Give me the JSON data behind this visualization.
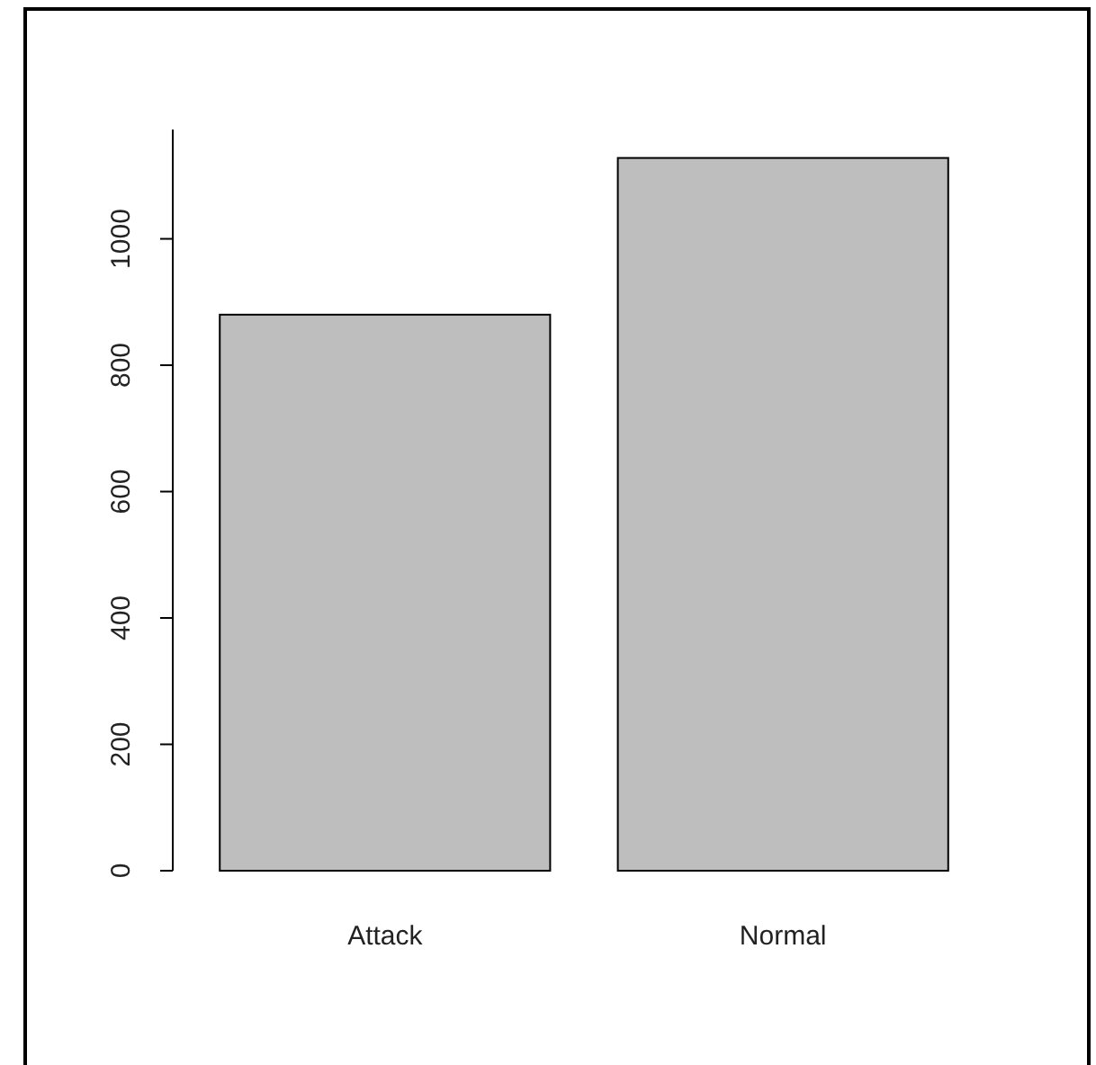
{
  "chart_data": {
    "type": "bar",
    "categories": [
      "Attack",
      "Normal"
    ],
    "values": [
      880,
      1128
    ],
    "color": "#bebebe",
    "ylim": [
      0,
      1173
    ],
    "yticks": [
      0,
      200,
      400,
      600,
      800,
      1000
    ],
    "grid": false
  }
}
